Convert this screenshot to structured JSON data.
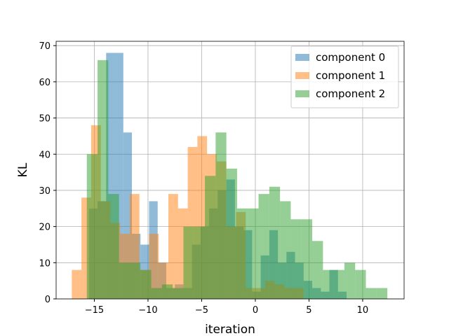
{
  "chart_data": {
    "type": "histogram",
    "xlabel": "iteration",
    "ylabel": "KL",
    "xlim": [
      -18.56,
      13.86
    ],
    "ylim": [
      0,
      71.2
    ],
    "xticks": [
      {
        "value": -15,
        "label": "−15"
      },
      {
        "value": -10,
        "label": "−10"
      },
      {
        "value": -5,
        "label": "−5"
      },
      0,
      5,
      10
    ],
    "yticks": [
      0,
      10,
      20,
      30,
      40,
      50,
      60,
      70
    ],
    "grid": true,
    "legend": "upper right",
    "alpha": 0.5,
    "series": [
      {
        "name": "component 0",
        "color": "#1f77b4",
        "bins": [
          -15.5,
          -14.7,
          -13.9,
          -13.1,
          -12.3,
          -11.5,
          -10.7,
          -9.9,
          -9.1,
          -8.3,
          -7.5,
          -6.7,
          -5.9,
          -5.1,
          -4.3,
          -3.5,
          -2.7,
          -1.9,
          -1.1,
          -0.3,
          0.5,
          1.3,
          2.1,
          2.9,
          3.7,
          4.5,
          5.3,
          6.1,
          6.9,
          7.7,
          8.5
        ],
        "values": [
          25,
          27,
          68,
          68,
          46,
          18,
          15,
          27,
          10,
          3,
          4,
          3,
          15,
          20,
          25,
          30,
          33,
          20,
          19,
          2,
          12,
          19,
          10,
          13,
          10,
          5,
          3,
          2,
          8,
          2
        ]
      },
      {
        "name": "component 1",
        "color": "#ff7f0e",
        "bins": [
          -17.1,
          -16.2,
          -15.3,
          -14.4,
          -13.5,
          -12.6,
          -11.7,
          -10.8,
          -9.9,
          -9.0,
          -8.1,
          -7.2,
          -6.3,
          -5.4,
          -4.5,
          -3.6,
          -2.7,
          -1.8,
          -0.9,
          0.0,
          0.9,
          1.8,
          2.7,
          3.6,
          4.5
        ],
        "values": [
          8,
          28,
          48,
          27,
          21,
          18,
          29,
          8,
          18,
          10,
          29,
          25,
          42,
          45,
          40,
          38,
          20,
          24,
          3,
          3,
          5,
          4,
          3,
          3
        ]
      },
      {
        "name": "component 2",
        "color": "#2ca02c",
        "bins": [
          -15.7,
          -14.7,
          -13.7,
          -12.7,
          -11.7,
          -10.7,
          -9.7,
          -8.7,
          -7.7,
          -6.7,
          -5.7,
          -4.7,
          -3.7,
          -2.7,
          -1.7,
          -0.7,
          0.3,
          1.3,
          2.3,
          3.3,
          4.3,
          5.3,
          6.3,
          7.3,
          8.3,
          9.3,
          10.3,
          11.3,
          12.3
        ],
        "values": [
          40,
          66,
          29,
          10,
          10,
          8,
          3,
          4,
          3,
          20,
          20,
          34,
          46,
          36,
          25,
          25,
          29,
          31,
          27,
          22,
          22,
          16,
          8,
          8,
          10,
          8,
          3,
          3
        ]
      }
    ]
  }
}
